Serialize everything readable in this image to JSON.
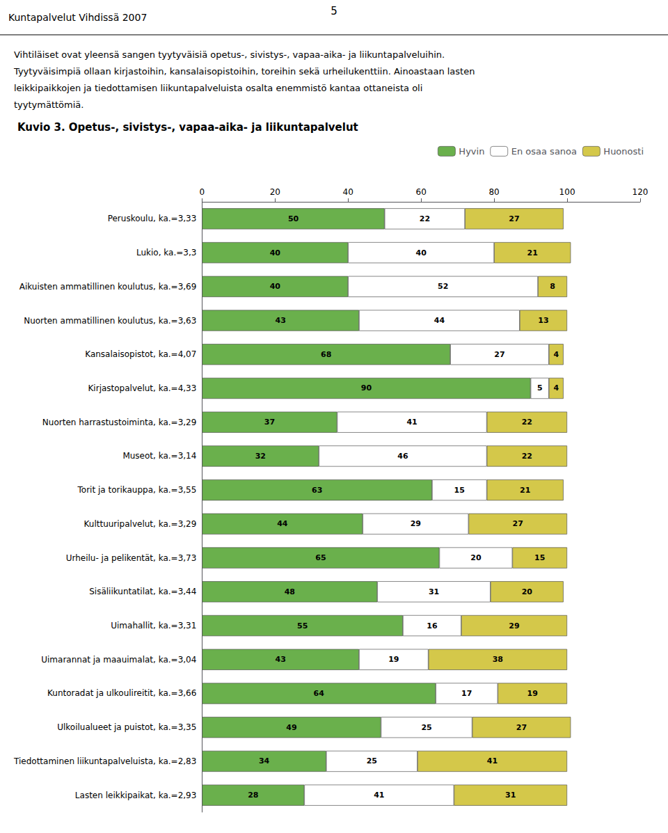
{
  "chart_data": {
    "type": "bar",
    "orientation": "horizontal",
    "stacked": true,
    "data_labels": true,
    "grid": false,
    "legend": "upper right",
    "title": "Kuvio 3. Opetus-, sivistys-, vapaa-aika- ja liikuntapalvelut",
    "annotations": [
      "Kuntapalvelut Vihdissä 2007",
      "5",
      "Vihtiläiset ovat yleensä sangen tyytyväisiä opetus-, sivistys-, vapaa-aika- ja liikuntapalveluihin.",
      "Tyytyväisimpiä ollaan kirjastoihin, kansalaisopistoihin, toreihin sekä urheilukenttiin. Ainoastaan lasten",
      "leikkipaikkojen ja tiedottamisen liikuntapalveluista osalta enemmistö kantaa ottaneista oli",
      "tyytymättömiä."
    ],
    "categories": [
      "Peruskoulu, ka.=3,33",
      "Lukio, ka.=3,3",
      "Aikuisten ammatillinen koulutus, ka.=3,69",
      "Nuorten ammatillinen koulutus, ka.=3,63",
      "Kansalaisopistot, ka.=4,07",
      "Kirjastopalvelut, ka.=4,33",
      "Nuorten harrastustoiminta, ka.=3,29",
      "Museot, ka.=3,14",
      "Torit ja torikauppa, ka.=3,55",
      "Kulttuuripalvelut, ka.=3,29",
      "Urheilu- ja pelikentät, ka.=3,73",
      "Sisäliikuntatilat, ka.=3,44",
      "Uimahallit, ka.=3,31",
      "Uimarannat ja maauimalat, ka.=3,04",
      "Kuntoradat ja ulkoulireitit, ka.=3,66",
      "Ulkoilualueet ja puistot, ka.=3,35",
      "Tiedottaminen liikuntapalveluista, ka.=2,83",
      "Lasten leikkipaikat, ka.=2,93"
    ],
    "series": [
      {
        "name": "Hyvin",
        "color": "#6ab04c",
        "values": [
          50,
          40,
          40,
          43,
          68,
          90,
          37,
          32,
          63,
          44,
          65,
          48,
          55,
          43,
          64,
          49,
          34,
          28
        ]
      },
      {
        "name": "En osaa sanoa",
        "color": "#ffffff",
        "values": [
          22,
          40,
          52,
          44,
          27,
          5,
          41,
          46,
          15,
          29,
          20,
          31,
          16,
          19,
          17,
          25,
          25,
          41
        ]
      },
      {
        "name": "Huonosti",
        "color": "#d4c84a",
        "values": [
          27,
          21,
          8,
          13,
          4,
          4,
          22,
          22,
          21,
          27,
          15,
          20,
          29,
          38,
          19,
          27,
          41,
          31
        ]
      }
    ],
    "xlim": [
      0,
      120
    ],
    "xticks": [
      0,
      20,
      40,
      60,
      80,
      100,
      120
    ]
  }
}
